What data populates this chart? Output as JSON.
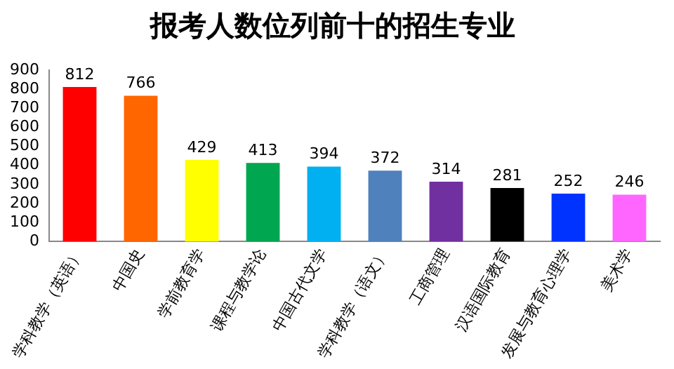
{
  "chart_data": {
    "type": "bar",
    "title": "报考人数位列前十的招生专业",
    "categories": [
      "学科教学（英语）",
      "中国史",
      "学前教育学",
      "课程与教学论",
      "中国古代文学",
      "学科教学（语文）",
      "工商管理",
      "汉语国际教育",
      "发展与教育心理学",
      "美术学"
    ],
    "values": [
      812,
      766,
      429,
      413,
      394,
      372,
      314,
      281,
      252,
      246
    ],
    "colors": [
      "#ff0000",
      "#ff6600",
      "#ffff00",
      "#00a650",
      "#00b0f0",
      "#4f81bd",
      "#7030a0",
      "#000000",
      "#0033ff",
      "#ff66ff"
    ],
    "ylim": [
      0,
      900
    ],
    "yticks": [
      0,
      100,
      200,
      300,
      400,
      500,
      600,
      700,
      800,
      900
    ],
    "grid": false,
    "legend": false,
    "data_labels": true
  }
}
